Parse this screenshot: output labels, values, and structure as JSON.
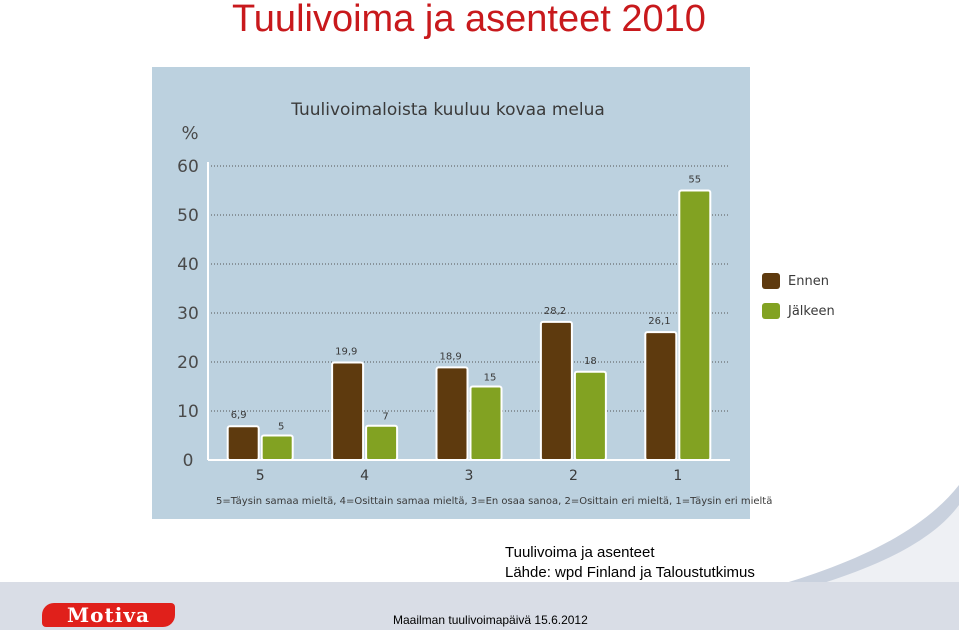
{
  "slide": {
    "title": "Tuulivoima ja asenteet 2010",
    "caption_line1": "Tuulivoima ja asenteet",
    "caption_line2": "Lähde: wpd Finland ja Taloustutkimus",
    "footer": "Maailman tuulivoimapäivä 15.6.2012",
    "logo_text": "Motiva"
  },
  "colors": {
    "title": "#c8191c",
    "panel_background": "#bcd1df",
    "ennen": "#5e3a0e",
    "jalkeen": "#82a222",
    "logo": "#e0201b"
  },
  "chart_data": {
    "type": "bar",
    "title": "Tuulivoimaloista kuuluu kovaa melua",
    "ylabel": "%",
    "xlabel": "5=Täysin samaa mieltä, 4=Osittain samaa mieltä, 3=En osaa sanoa, 2=Osittain eri mieltä, 1=Täysin eri mieltä",
    "categories": [
      "5",
      "4",
      "3",
      "2",
      "1"
    ],
    "ylim": [
      0,
      60
    ],
    "yticks": [
      "0",
      "10",
      "20",
      "30",
      "40",
      "50",
      "60"
    ],
    "grid": true,
    "legend_position": "right",
    "series": [
      {
        "name": "Ennen",
        "values": [
          6.9,
          19.9,
          18.9,
          28.2,
          26.1
        ],
        "labels": [
          "6,9",
          "19,9",
          "18,9",
          "28,2",
          "26,1"
        ]
      },
      {
        "name": "Jälkeen",
        "values": [
          5,
          7,
          15,
          18,
          55
        ],
        "labels": [
          "5",
          "7",
          "15",
          "18",
          "55"
        ]
      }
    ]
  }
}
